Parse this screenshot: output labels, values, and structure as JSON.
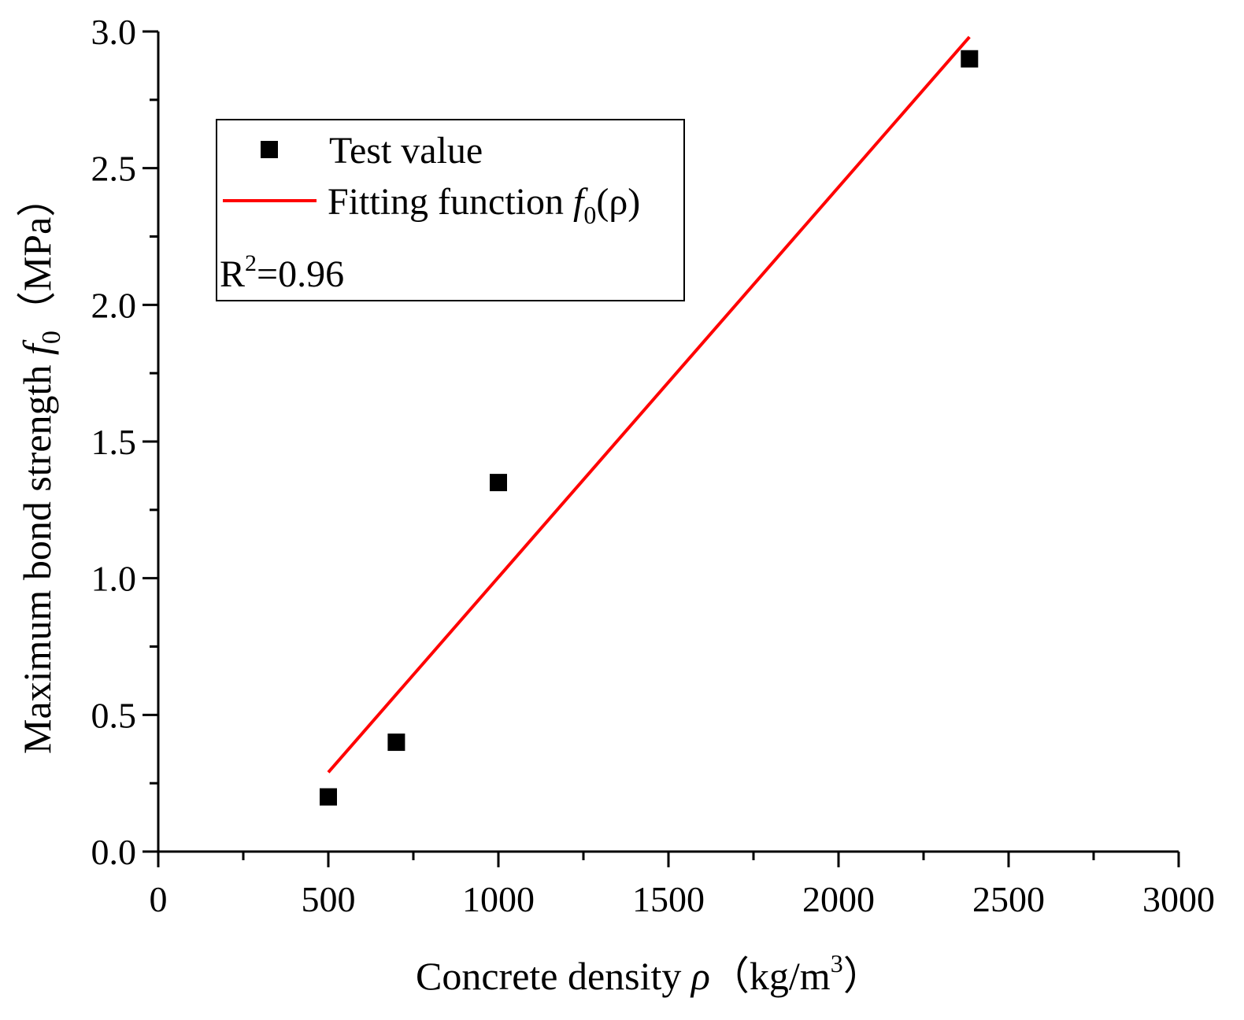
{
  "chart_data": {
    "type": "scatter",
    "xlabel": {
      "prefix": "Concrete density ",
      "symbol": "ρ",
      "paren_open": "（",
      "unit": "kg/m",
      "unit_sup": "3",
      "paren_close": "）"
    },
    "ylabel": {
      "prefix": "Maximum bond strength ",
      "symbol": "f",
      "symbol_sub": "0",
      "paren_open": "（",
      "unit": "MPa",
      "paren_close": "）"
    },
    "xlim": [
      0,
      3000
    ],
    "ylim": [
      0.0,
      3.0
    ],
    "x_ticks": [
      "0",
      "500",
      "1000",
      "1500",
      "2000",
      "2500",
      "3000"
    ],
    "y_ticks": [
      "0.0",
      "0.5",
      "1.0",
      "1.5",
      "2.0",
      "2.5",
      "3.0"
    ],
    "series": [
      {
        "name": "Test value",
        "kind": "scatter",
        "marker": "square",
        "color": "#000000",
        "points": [
          {
            "x": 500,
            "y": 0.2
          },
          {
            "x": 700,
            "y": 0.4
          },
          {
            "x": 1000,
            "y": 1.35
          },
          {
            "x": 2385,
            "y": 2.9
          }
        ]
      },
      {
        "name": "Fitting function",
        "kind": "line",
        "color": "#ff0000",
        "points": [
          {
            "x": 500,
            "y": 0.29
          },
          {
            "x": 2385,
            "y": 2.98
          }
        ]
      }
    ],
    "legend": {
      "position": "top-left",
      "entries": [
        {
          "label": "Test value"
        },
        {
          "label": "Fitting function ",
          "symbol": "f",
          "symbol_sub": "0",
          "arg": "(ρ)"
        }
      ],
      "annotation": {
        "prefix": "R",
        "sup": "2",
        "value": "=0.96"
      }
    }
  }
}
